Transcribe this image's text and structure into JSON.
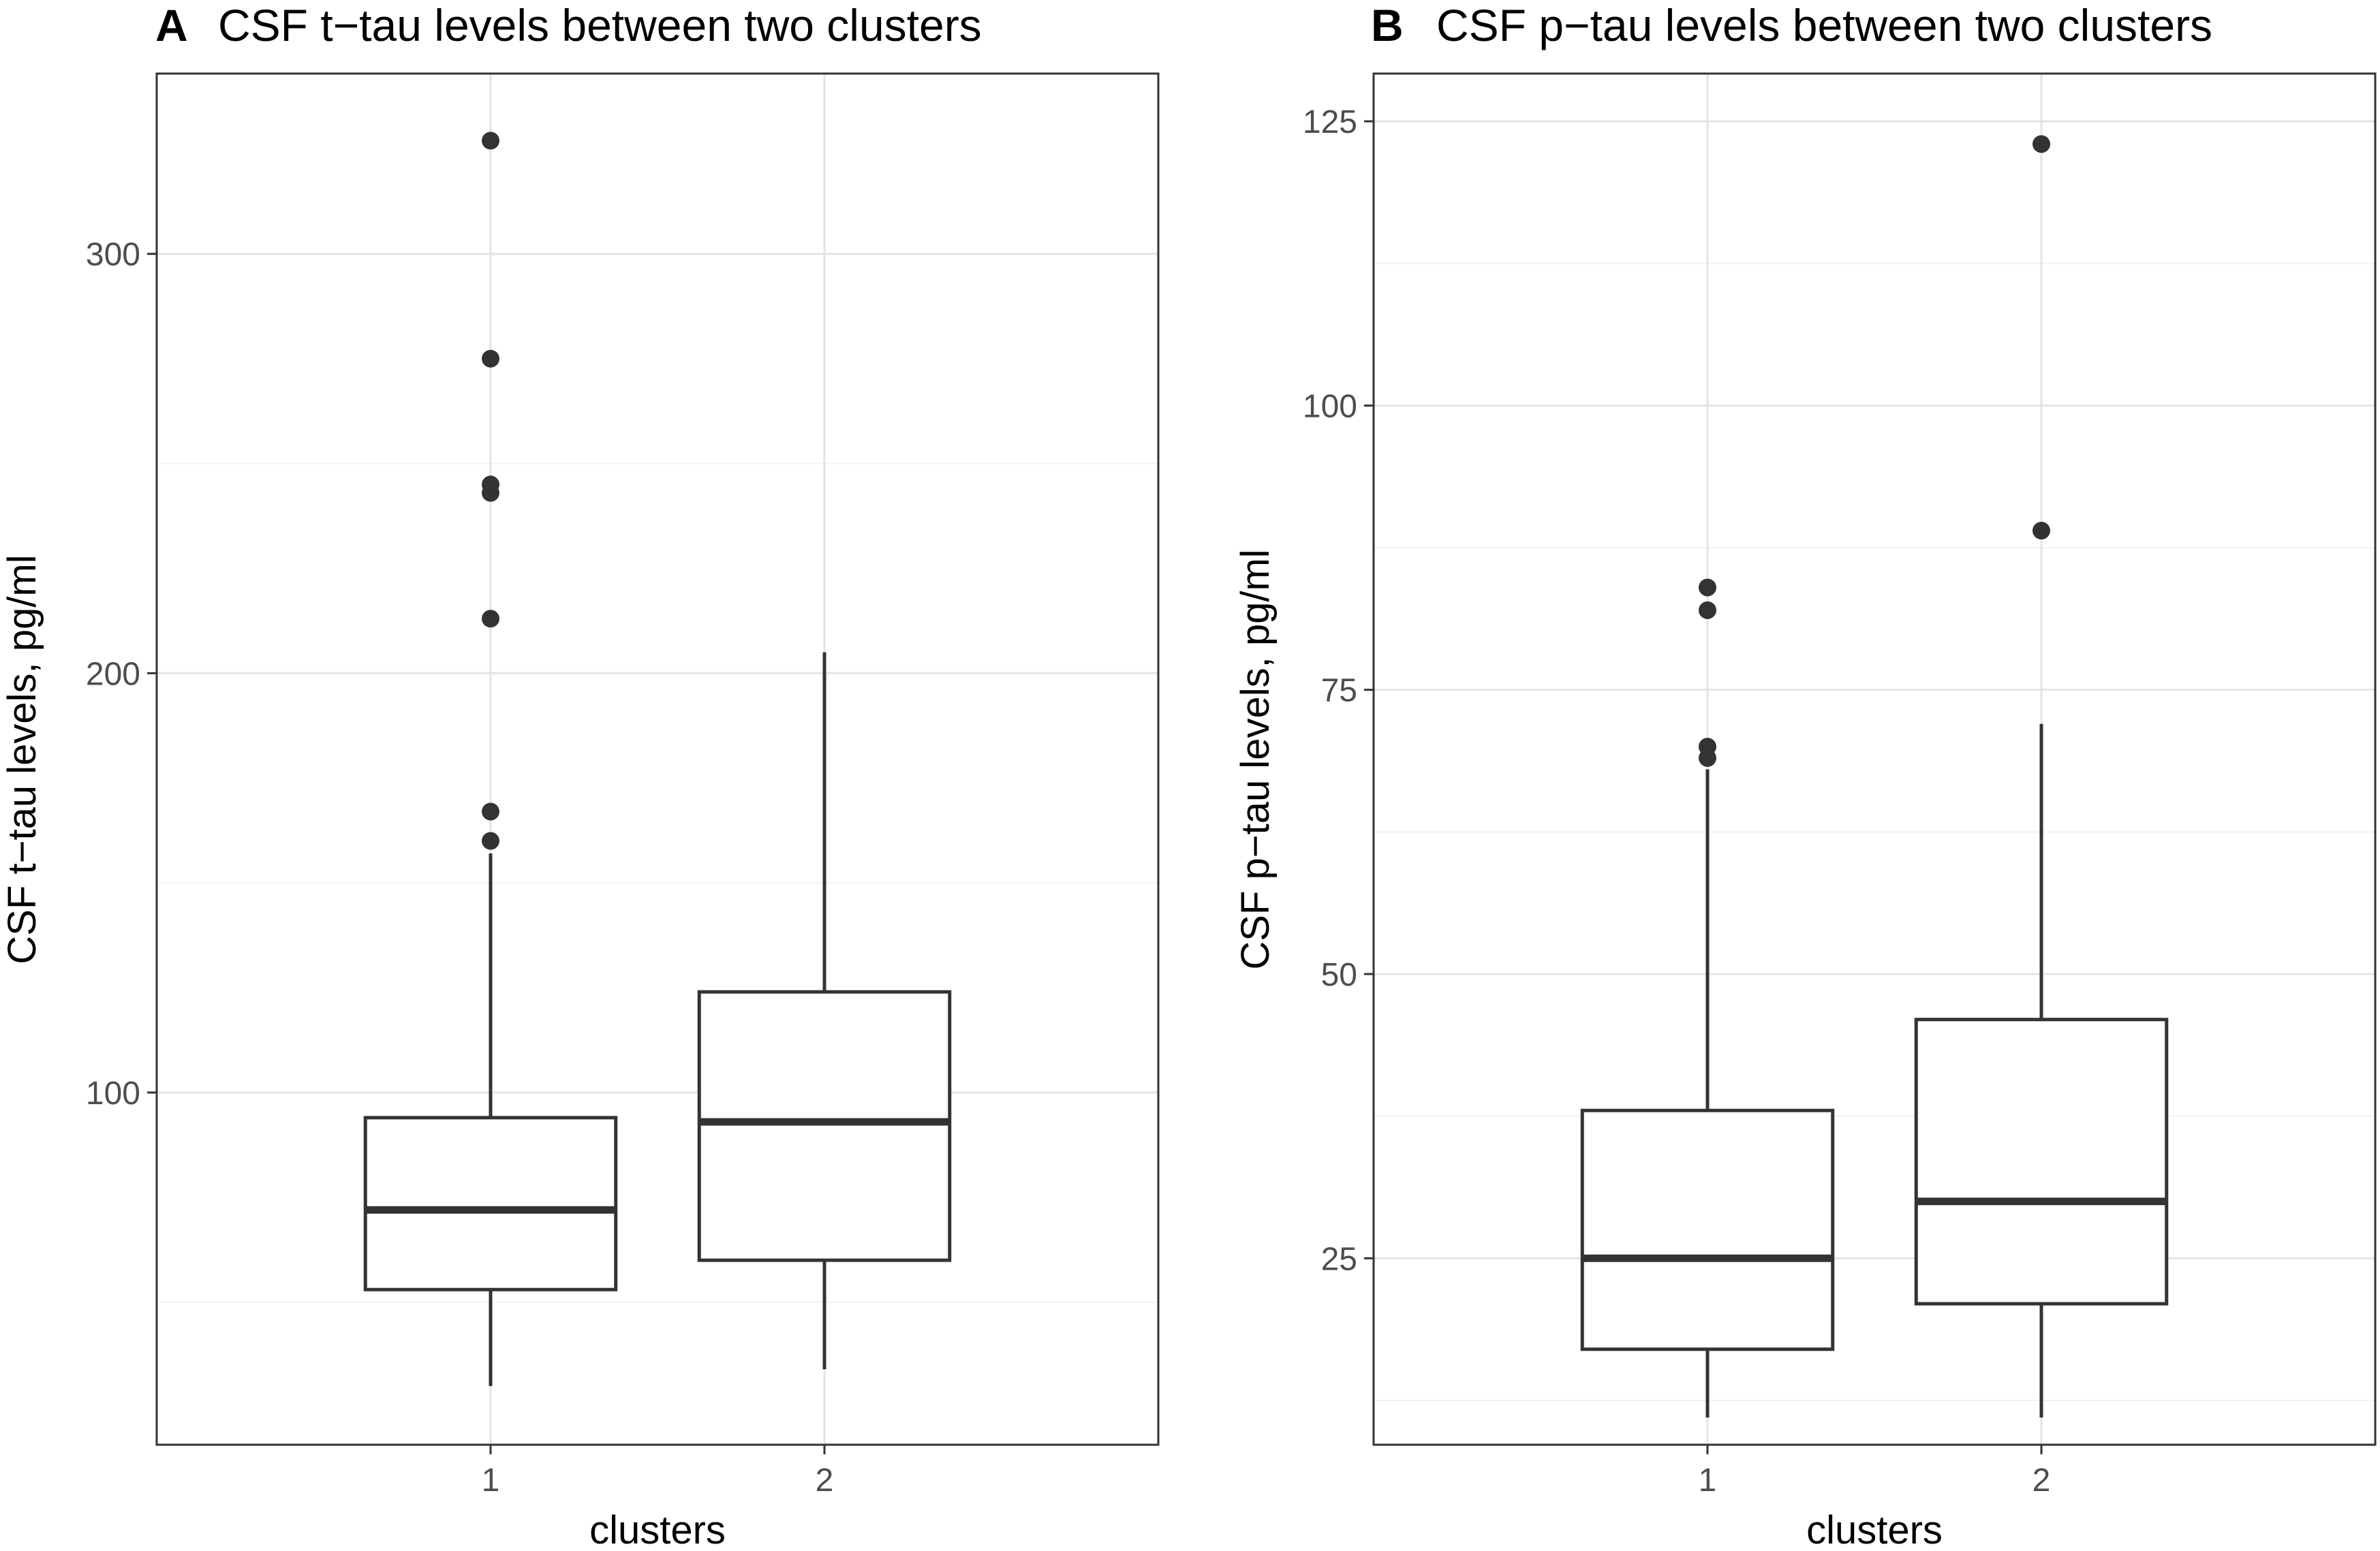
{
  "colors": {
    "background": "#ffffff",
    "panel_border": "#333333",
    "grid_major": "#e4e4e4",
    "grid_minor": "#f1f1f1",
    "box_line": "#333333",
    "outlier": "#333333",
    "tick_label": "#4d4d4d",
    "text": "#000000"
  },
  "chart_data": [
    {
      "type": "boxplot",
      "panel_letter": "A",
      "title": "CSF t−tau levels between two clusters",
      "xlabel": "clusters",
      "ylabel": "CSF t−tau levels, pg/ml",
      "categories": [
        "1",
        "2"
      ],
      "ylim": [
        16,
        343
      ],
      "yticks": [
        100,
        200,
        300
      ],
      "ytick_labels": [
        "100",
        "200",
        "300"
      ],
      "yminor": [
        50,
        150,
        250
      ],
      "boxes": [
        {
          "category": "1",
          "whisker_low": 30,
          "q1": 53,
          "median": 72,
          "q3": 94,
          "whisker_high": 157,
          "outliers": [
            160,
            167,
            213,
            243,
            245,
            275,
            327
          ]
        },
        {
          "category": "2",
          "whisker_low": 34,
          "q1": 60,
          "median": 93,
          "q3": 124,
          "whisker_high": 205,
          "outliers": []
        }
      ]
    },
    {
      "type": "boxplot",
      "panel_letter": "B",
      "title": "CSF p−tau levels between two clusters",
      "xlabel": "clusters",
      "ylabel": "CSF p−tau levels, pg/ml",
      "categories": [
        "1",
        "2"
      ],
      "ylim": [
        8.6,
        129.2
      ],
      "yticks": [
        25,
        50,
        75,
        100,
        125
      ],
      "ytick_labels": [
        "25",
        "50",
        "75",
        "100",
        "125"
      ],
      "yminor": [
        12.5,
        37.5,
        62.5,
        87.5,
        112.5
      ],
      "boxes": [
        {
          "category": "1",
          "whisker_low": 11,
          "q1": 17,
          "median": 25,
          "q3": 38,
          "whisker_high": 68,
          "outliers": [
            69,
            70,
            82,
            84
          ]
        },
        {
          "category": "2",
          "whisker_low": 11,
          "q1": 21,
          "median": 30,
          "q3": 46,
          "whisker_high": 72,
          "outliers": [
            89,
            123
          ]
        }
      ]
    }
  ]
}
